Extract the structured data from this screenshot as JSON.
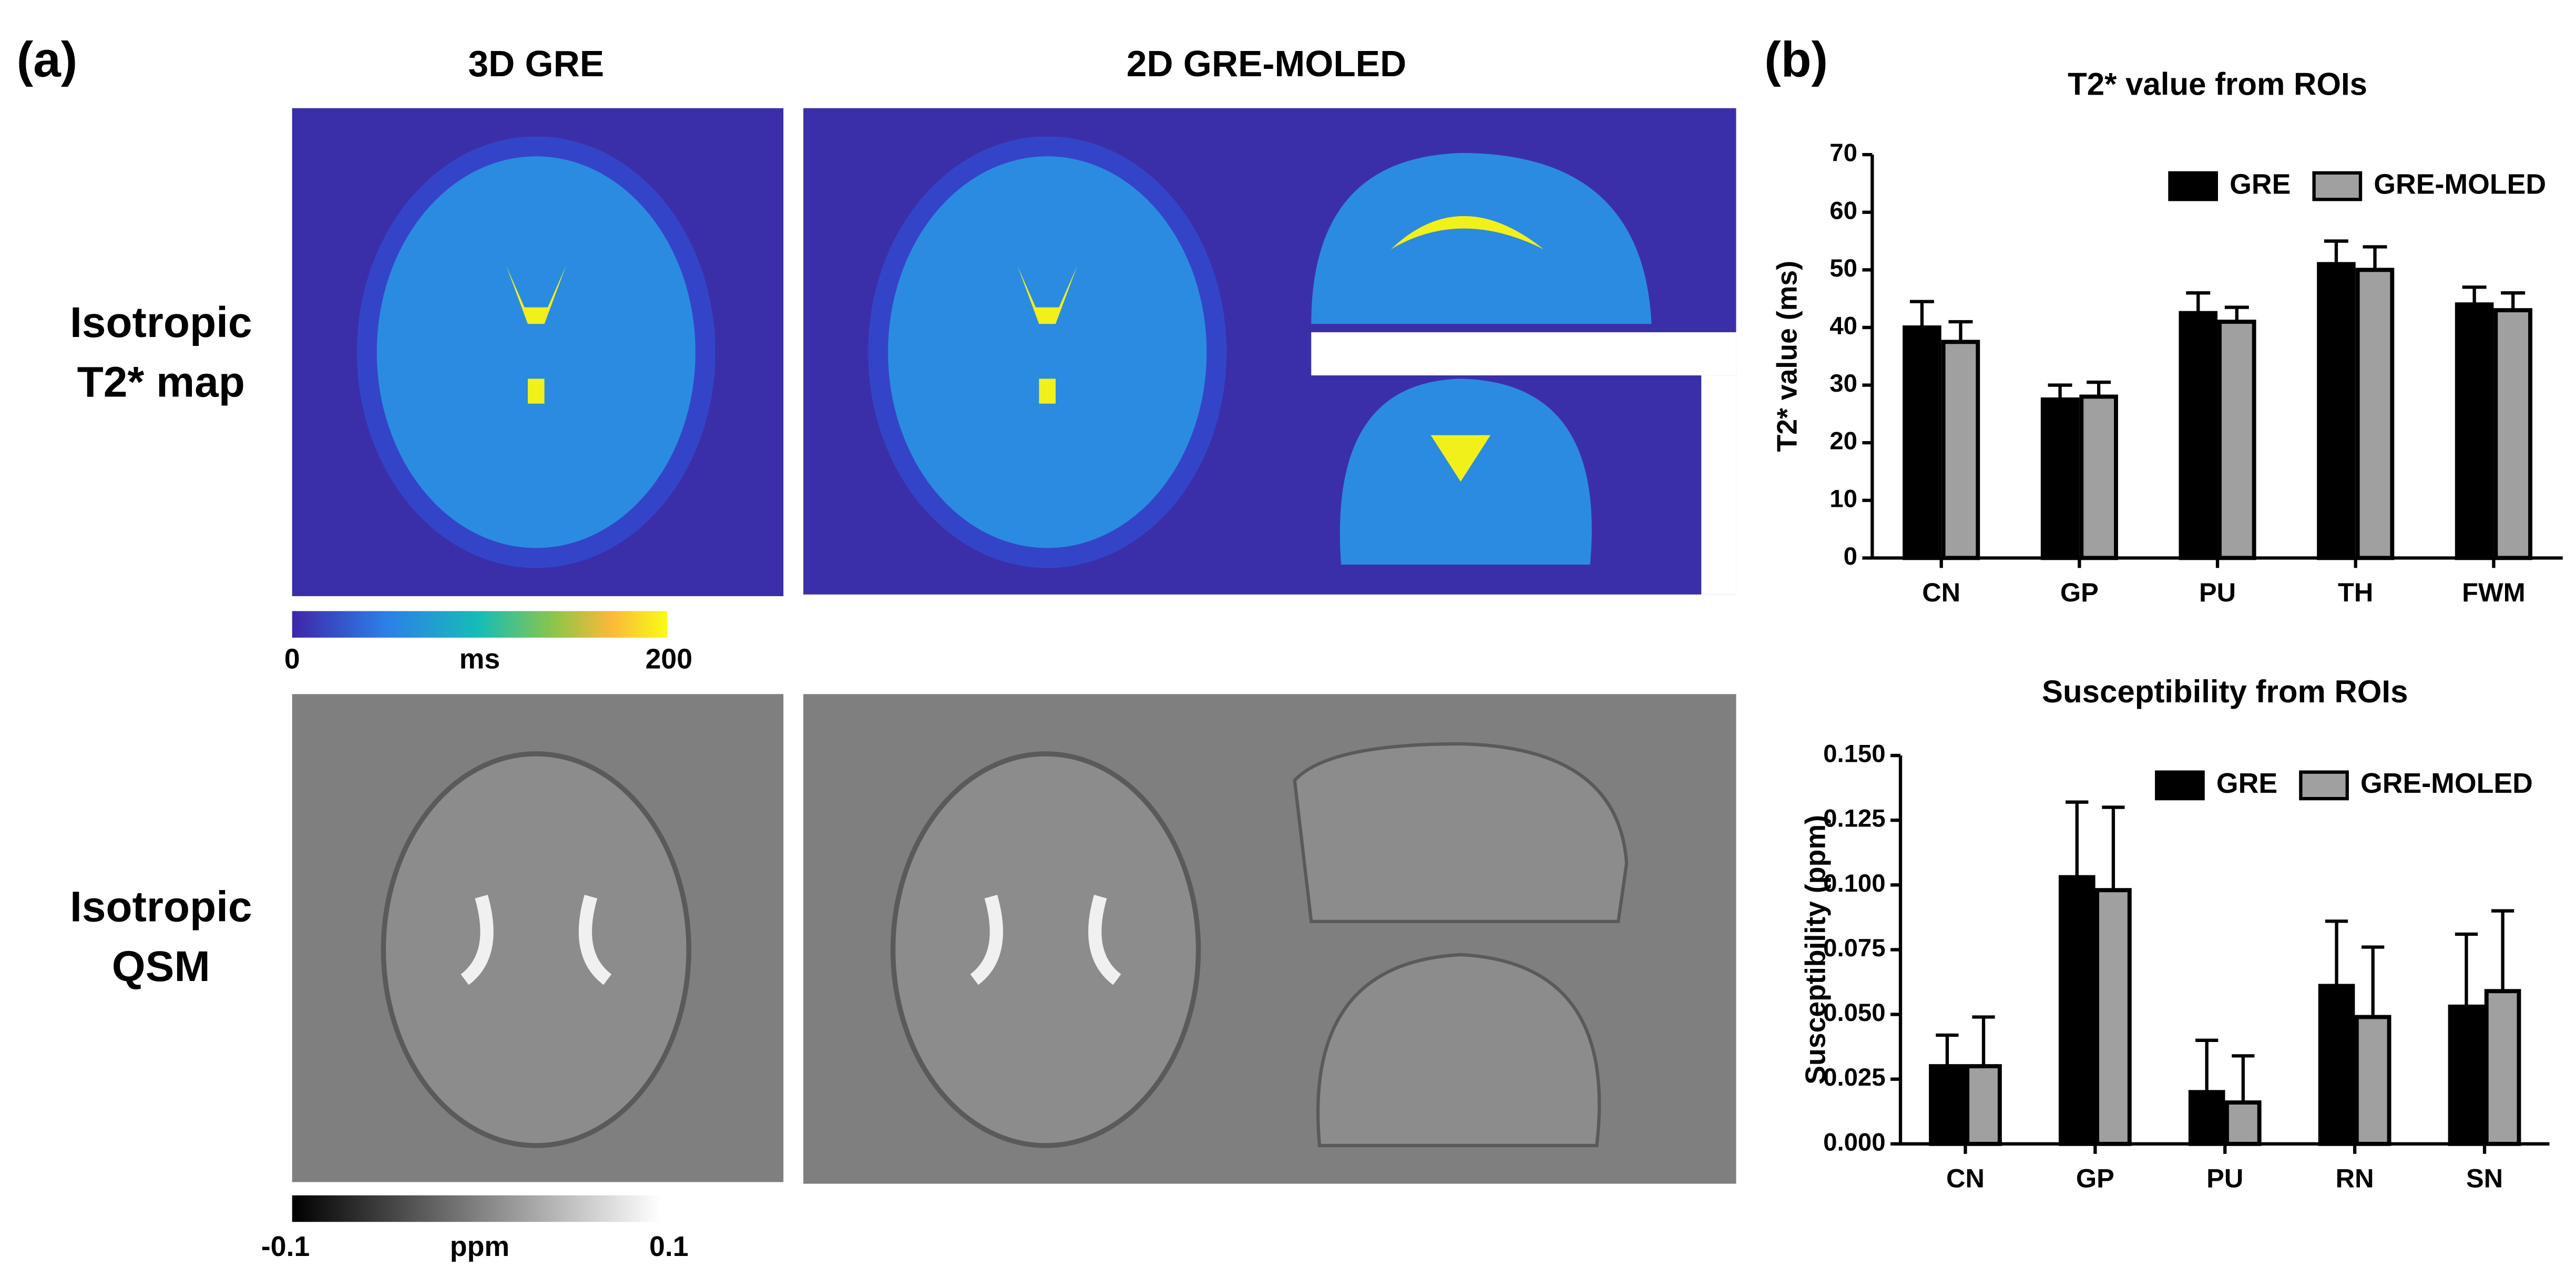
{
  "figure": {
    "panel_a": "(a)",
    "panel_b": "(b)",
    "columns": [
      "3D GRE",
      "2D GRE-MOLED"
    ],
    "rows": [
      [
        "Isotropic",
        "T2* map"
      ],
      [
        "Isotropic",
        "QSM"
      ]
    ],
    "colorbars": [
      {
        "min": 0,
        "unit": "ms",
        "max": 200
      },
      {
        "min": -0.1,
        "unit": "ppm",
        "max": 0.1
      }
    ]
  },
  "chart_data": [
    {
      "type": "bar",
      "title": "T2* value from ROIs",
      "ylabel": "T2* value (ms)",
      "categories": [
        "CN",
        "GP",
        "PU",
        "TH",
        "FWM"
      ],
      "series": [
        {
          "name": "GRE",
          "color": "#000000",
          "values": [
            40,
            27.5,
            42.5,
            51,
            44
          ],
          "errors": [
            4.5,
            2.5,
            3.5,
            4,
            3
          ]
        },
        {
          "name": "GRE-MOLED",
          "color": "#a0a0a0",
          "values": [
            37.5,
            28,
            41,
            50,
            43
          ],
          "errors": [
            3.5,
            2.5,
            2.5,
            4,
            3
          ]
        }
      ],
      "ylim": [
        0,
        70
      ],
      "yticks": [
        0,
        10,
        20,
        30,
        40,
        50,
        60,
        70
      ],
      "legend": "top-right"
    },
    {
      "type": "bar",
      "title": "Susceptibility from ROIs",
      "ylabel": "Susceptibility (ppm)",
      "categories": [
        "CN",
        "GP",
        "PU",
        "RN",
        "SN"
      ],
      "series": [
        {
          "name": "GRE",
          "color": "#000000",
          "values": [
            0.03,
            0.103,
            0.02,
            0.061,
            0.053
          ],
          "errors": [
            0.012,
            0.029,
            0.02,
            0.025,
            0.028
          ]
        },
        {
          "name": "GRE-MOLED",
          "color": "#a0a0a0",
          "values": [
            0.03,
            0.098,
            0.016,
            0.049,
            0.059
          ],
          "errors": [
            0.019,
            0.032,
            0.018,
            0.027,
            0.031
          ]
        }
      ],
      "ylim": [
        0,
        0.15
      ],
      "yticks": [
        {
          "value": 0,
          "label": "0.000"
        },
        {
          "value": 0.025,
          "label": "0.025"
        },
        {
          "value": 0.05,
          "label": "0.050"
        },
        {
          "value": 0.075,
          "label": "0.075"
        },
        {
          "value": 0.1,
          "label": "0.100"
        },
        {
          "value": 0.125,
          "label": "0.125"
        },
        {
          "value": 0.15,
          "label": "0.150"
        }
      ],
      "legend": "top-right"
    }
  ]
}
